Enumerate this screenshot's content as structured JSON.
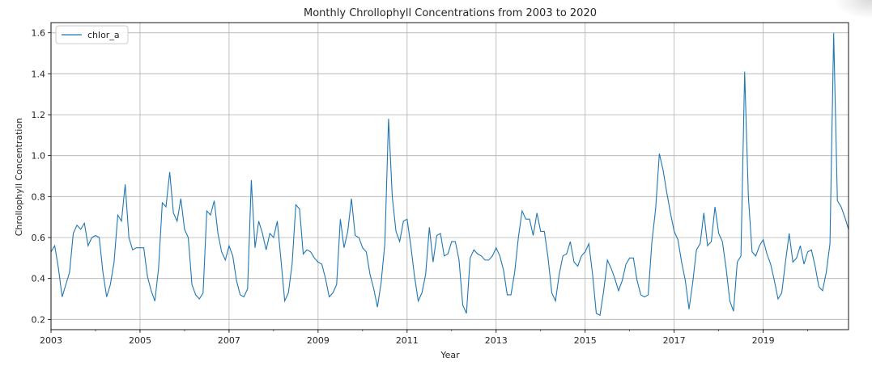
{
  "chart_data": {
    "type": "line",
    "title": "Monthly Chrollophyll Concentrations from 2003 to 2020",
    "xlabel": "Year",
    "ylabel": "Chrollophyll Concentration",
    "xlim": [
      2003.0,
      2020.9167
    ],
    "ylim": [
      0.15,
      1.65
    ],
    "x_ticks": [
      "2003",
      "2005",
      "2007",
      "2009",
      "2011",
      "2013",
      "2015",
      "2017",
      "2019"
    ],
    "y_ticks": [
      "0.2",
      "0.4",
      "0.6",
      "0.8",
      "1.0",
      "1.2",
      "1.4",
      "1.6"
    ],
    "grid": true,
    "legend_position": "upper left",
    "line_color": "#1f77b4",
    "start_year": 2003,
    "series": [
      {
        "name": "chlor_a",
        "values": [
          0.53,
          0.56,
          0.45,
          0.31,
          0.37,
          0.43,
          0.62,
          0.66,
          0.64,
          0.67,
          0.56,
          0.6,
          0.61,
          0.6,
          0.43,
          0.31,
          0.37,
          0.48,
          0.71,
          0.68,
          0.86,
          0.6,
          0.54,
          0.55,
          0.55,
          0.55,
          0.41,
          0.34,
          0.29,
          0.45,
          0.77,
          0.75,
          0.92,
          0.72,
          0.68,
          0.79,
          0.64,
          0.6,
          0.37,
          0.32,
          0.3,
          0.33,
          0.73,
          0.71,
          0.78,
          0.62,
          0.53,
          0.49,
          0.56,
          0.51,
          0.39,
          0.32,
          0.31,
          0.35,
          0.88,
          0.55,
          0.68,
          0.62,
          0.54,
          0.62,
          0.6,
          0.68,
          0.49,
          0.29,
          0.33,
          0.47,
          0.76,
          0.74,
          0.52,
          0.54,
          0.53,
          0.5,
          0.48,
          0.47,
          0.4,
          0.31,
          0.33,
          0.37,
          0.69,
          0.55,
          0.63,
          0.79,
          0.61,
          0.6,
          0.55,
          0.53,
          0.42,
          0.35,
          0.26,
          0.38,
          0.57,
          1.18,
          0.8,
          0.63,
          0.58,
          0.68,
          0.69,
          0.56,
          0.41,
          0.29,
          0.33,
          0.42,
          0.65,
          0.48,
          0.61,
          0.62,
          0.51,
          0.52,
          0.58,
          0.58,
          0.49,
          0.27,
          0.23,
          0.5,
          0.54,
          0.52,
          0.51,
          0.49,
          0.49,
          0.51,
          0.55,
          0.51,
          0.44,
          0.32,
          0.32,
          0.43,
          0.6,
          0.73,
          0.69,
          0.69,
          0.61,
          0.72,
          0.63,
          0.63,
          0.5,
          0.33,
          0.29,
          0.42,
          0.51,
          0.52,
          0.58,
          0.48,
          0.46,
          0.51,
          0.53,
          0.57,
          0.42,
          0.23,
          0.22,
          0.34,
          0.49,
          0.45,
          0.4,
          0.34,
          0.39,
          0.47,
          0.5,
          0.5,
          0.39,
          0.32,
          0.31,
          0.32,
          0.58,
          0.74,
          1.01,
          0.93,
          0.82,
          0.72,
          0.63,
          0.59,
          0.48,
          0.39,
          0.25,
          0.38,
          0.54,
          0.57,
          0.72,
          0.56,
          0.58,
          0.75,
          0.62,
          0.58,
          0.45,
          0.29,
          0.24,
          0.48,
          0.51,
          1.41,
          0.8,
          0.53,
          0.51,
          0.56,
          0.59,
          0.52,
          0.47,
          0.39,
          0.3,
          0.33,
          0.48,
          0.62,
          0.48,
          0.5,
          0.56,
          0.47,
          0.53,
          0.54,
          0.46,
          0.36,
          0.34,
          0.43,
          0.57,
          1.6,
          0.78,
          0.75,
          0.7,
          0.64
        ]
      }
    ]
  }
}
